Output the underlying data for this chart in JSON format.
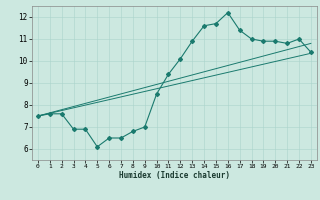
{
  "xlabel": "Humidex (Indice chaleur)",
  "bg_color": "#cce8e0",
  "line_color": "#1a7a6e",
  "xlim": [
    -0.5,
    23.5
  ],
  "ylim": [
    5.5,
    12.5
  ],
  "xticks": [
    0,
    1,
    2,
    3,
    4,
    5,
    6,
    7,
    8,
    9,
    10,
    11,
    12,
    13,
    14,
    15,
    16,
    17,
    18,
    19,
    20,
    21,
    22,
    23
  ],
  "yticks": [
    6,
    7,
    8,
    9,
    10,
    11,
    12
  ],
  "series1_x": [
    0,
    1,
    2,
    3,
    4,
    5,
    6,
    7,
    8,
    9,
    10,
    11,
    12,
    13,
    14,
    15,
    16,
    17,
    18,
    19,
    20,
    21,
    22,
    23
  ],
  "series1_y": [
    7.5,
    7.6,
    7.6,
    6.9,
    6.9,
    6.1,
    6.5,
    6.5,
    6.8,
    7.0,
    8.5,
    9.4,
    10.1,
    10.9,
    11.6,
    11.7,
    12.2,
    11.4,
    11.0,
    10.9,
    10.9,
    10.8,
    11.0,
    10.4
  ],
  "series2_x": [
    0,
    23
  ],
  "series2_y": [
    7.5,
    10.35
  ],
  "series3_x": [
    0,
    23
  ],
  "series3_y": [
    7.5,
    10.8
  ]
}
